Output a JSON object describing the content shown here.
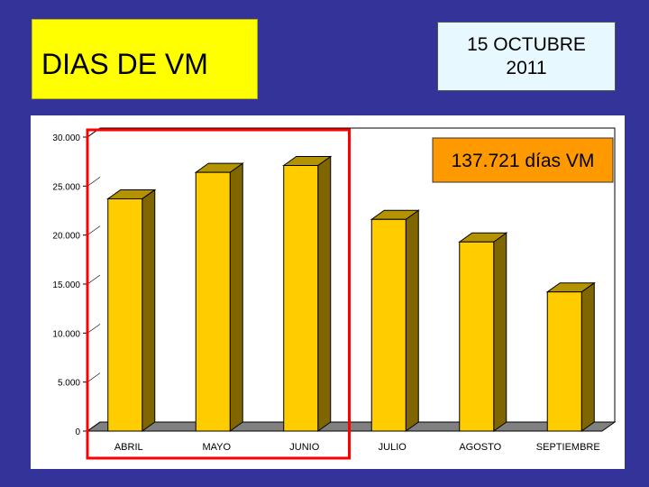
{
  "header": {
    "title": "DIAS DE VM",
    "date_line1": "15 OCTUBRE",
    "date_line2": "2011"
  },
  "annotation": {
    "total_text": "137.721 días VM",
    "color": "#ff9900"
  },
  "colors": {
    "background": "#333399",
    "title_box": "#ffff00",
    "date_box": "#e8f8ff",
    "bar_front": "#ffcc00",
    "bar_side": "#806600",
    "bar_top": "#b39400",
    "floor": "#808080",
    "highlight": "#ff0000"
  },
  "chart_data": {
    "type": "bar",
    "categories": [
      "ABRIL",
      "MAYO",
      "JUNIO",
      "JULIO",
      "AGOSTO",
      "SEPTIEMBRE"
    ],
    "values": [
      23700,
      26400,
      27100,
      21600,
      19300,
      14200
    ],
    "ylim": [
      0,
      30000
    ],
    "yticks": [
      0,
      5000,
      10000,
      15000,
      20000,
      25000,
      30000
    ],
    "ytick_labels": [
      "0",
      "5.000",
      "10.000",
      "15.000",
      "20.000",
      "25.000",
      "30.000"
    ],
    "title": "",
    "xlabel": "",
    "ylabel": "",
    "grid": false,
    "highlighted_categories": [
      "ABRIL",
      "MAYO",
      "JUNIO"
    ]
  }
}
